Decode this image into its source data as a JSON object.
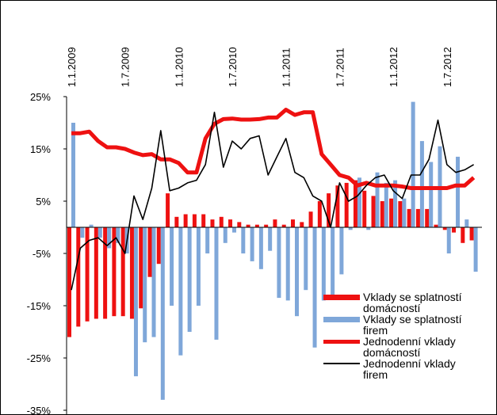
{
  "chart_data": {
    "type": "combo",
    "categories": [
      "1.1.2009",
      null,
      null,
      null,
      null,
      null,
      "1.7.2009",
      null,
      null,
      null,
      null,
      null,
      "1.1.2010",
      null,
      null,
      null,
      null,
      null,
      "1.7.2010",
      null,
      null,
      null,
      null,
      null,
      "1.1.2011",
      null,
      null,
      null,
      null,
      null,
      "1.7.2011",
      null,
      null,
      null,
      null,
      null,
      "1.1.2012",
      null,
      null,
      null,
      null,
      null,
      "1.7.2012",
      null,
      null,
      null
    ],
    "ylim": [
      -35,
      25
    ],
    "yticks": [
      {
        "value": 25,
        "label": "25%"
      },
      {
        "value": 15,
        "label": "15%"
      },
      {
        "value": 5,
        "label": "5%"
      },
      {
        "value": -5,
        "label": "-5%"
      },
      {
        "value": -15,
        "label": "-15%"
      },
      {
        "value": -25,
        "label": "-25%"
      },
      {
        "value": -35,
        "label": "-35%"
      }
    ],
    "legend": "bottom-right",
    "series": [
      {
        "name": "Vklady se splatností domácností",
        "type": "bar",
        "color": "#ee1111",
        "values": [
          -21,
          -19,
          -18,
          -17.5,
          -17.5,
          -17,
          -17,
          -17.5,
          -15.5,
          -9.5,
          -7,
          6.5,
          2,
          2.5,
          2.5,
          2.5,
          1.5,
          2,
          1.5,
          1,
          0.5,
          0.5,
          0.5,
          1.5,
          0.5,
          1.5,
          1,
          3,
          5,
          6.5,
          8,
          8.5,
          9,
          7,
          6,
          5,
          5.5,
          5,
          3.5,
          3.5,
          3.5,
          0.5,
          -0.5,
          -1,
          -3,
          -2.5
        ]
      },
      {
        "name": "Vklady se splatností firem",
        "type": "bar",
        "color": "#7fa7d9",
        "values": [
          20,
          -2,
          0.5,
          -2,
          -4,
          -3,
          -5,
          -28.5,
          -22,
          -21,
          -33,
          -15,
          -24.5,
          -20,
          -15,
          -5,
          -21.5,
          -3,
          -1,
          -5,
          -6.5,
          -8,
          -4.5,
          -13.5,
          -14,
          -17,
          -12,
          -23,
          -14,
          -13,
          -9,
          -0.5,
          9.5,
          -0.5,
          10.5,
          8.5,
          9,
          5.5,
          24,
          16.5,
          12.5,
          15.5,
          -5,
          13.5,
          1.5,
          -8.5
        ]
      },
      {
        "name": "Jednodenní vklady domácností",
        "type": "line",
        "color": "#ee1111",
        "width": 5,
        "values": [
          18,
          18,
          18.3,
          16.5,
          15.3,
          15.3,
          15,
          14.3,
          13.8,
          14,
          13,
          13,
          12.3,
          10.5,
          10.5,
          17,
          19.8,
          20.7,
          20.8,
          20.6,
          20.6,
          20.7,
          21,
          21,
          22.5,
          21.5,
          22,
          22,
          14,
          12,
          10,
          9.5,
          8,
          8.5,
          8,
          8,
          8,
          7.8,
          7.5,
          7.5,
          7.5,
          7.5,
          7.5,
          8,
          8,
          9.5
        ]
      },
      {
        "name": "Jednodenní vklady firem",
        "type": "line",
        "color": "#000000",
        "width": 1.6,
        "values": [
          -12,
          -4,
          -2.5,
          -2,
          -3.5,
          -2,
          -5,
          6,
          1.5,
          7.5,
          18.5,
          7,
          7.5,
          8.5,
          9,
          12,
          22,
          11.5,
          16.5,
          15,
          17,
          17.5,
          10,
          13.5,
          17,
          10.5,
          9.5,
          6,
          5,
          0,
          8.5,
          5,
          6,
          8,
          9.5,
          10,
          7,
          5.5,
          10,
          10,
          13,
          20.5,
          12,
          10.5,
          11,
          12
        ]
      }
    ]
  }
}
